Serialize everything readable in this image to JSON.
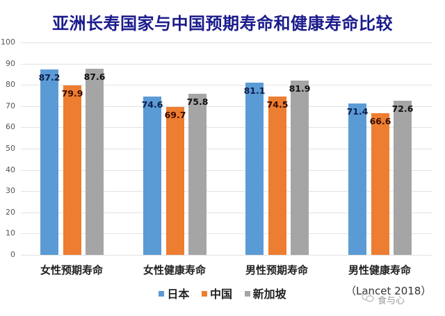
{
  "title": "亚洲长寿国家与中国预期寿命和健康寿命比较",
  "legend": [
    {
      "label": "日本",
      "color": "#5b9bd5"
    },
    {
      "label": "中国",
      "color": "#ed7d31"
    },
    {
      "label": "新加坡",
      "color": "#a5a5a5"
    }
  ],
  "source_note": "（Lancet 2018）",
  "watermark": "食与心",
  "y_ticks": [
    "0",
    "10",
    "20",
    "30",
    "40",
    "50",
    "60",
    "70",
    "80",
    "90",
    "100"
  ],
  "x_labels": [
    "女性预期寿命",
    "女性健康寿命",
    "男性预期寿命",
    "男性健康寿命"
  ],
  "chart_data": {
    "type": "bar",
    "title": "亚洲长寿国家与中国预期寿命和健康寿命比较",
    "categories": [
      "女性预期寿命",
      "女性健康寿命",
      "男性预期寿命",
      "男性健康寿命"
    ],
    "series": [
      {
        "name": "日本",
        "color": "#5b9bd5",
        "values": [
          87.2,
          74.6,
          81.1,
          71.4
        ]
      },
      {
        "name": "中国",
        "color": "#ed7d31",
        "values": [
          79.9,
          69.7,
          74.5,
          66.6
        ]
      },
      {
        "name": "新加坡",
        "color": "#a5a5a5",
        "values": [
          87.6,
          75.8,
          81.9,
          72.6
        ]
      }
    ],
    "xlabel": "",
    "ylabel": "",
    "ylim": [
      0,
      100
    ],
    "ytick_step": 10,
    "grid": true,
    "legend_position": "bottom",
    "data_labels": true,
    "annotations": [
      "（Lancet 2018）"
    ]
  }
}
